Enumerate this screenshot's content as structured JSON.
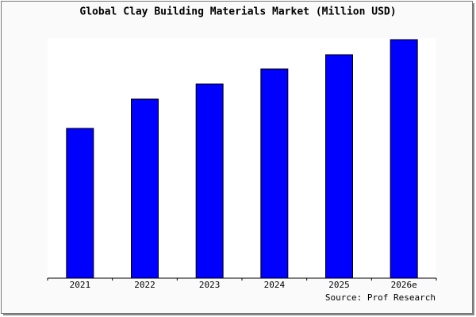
{
  "chart_data": {
    "type": "bar",
    "title": "Global Clay Building Materials Market (Million USD)",
    "categories": [
      "2021",
      "2022",
      "2023",
      "2024",
      "2025",
      "2026e"
    ],
    "values": [
      189,
      226,
      245,
      264,
      282,
      301
    ],
    "color": "#0000ff",
    "ylim": [
      0,
      303
    ],
    "source": "Source: Prof Research"
  }
}
